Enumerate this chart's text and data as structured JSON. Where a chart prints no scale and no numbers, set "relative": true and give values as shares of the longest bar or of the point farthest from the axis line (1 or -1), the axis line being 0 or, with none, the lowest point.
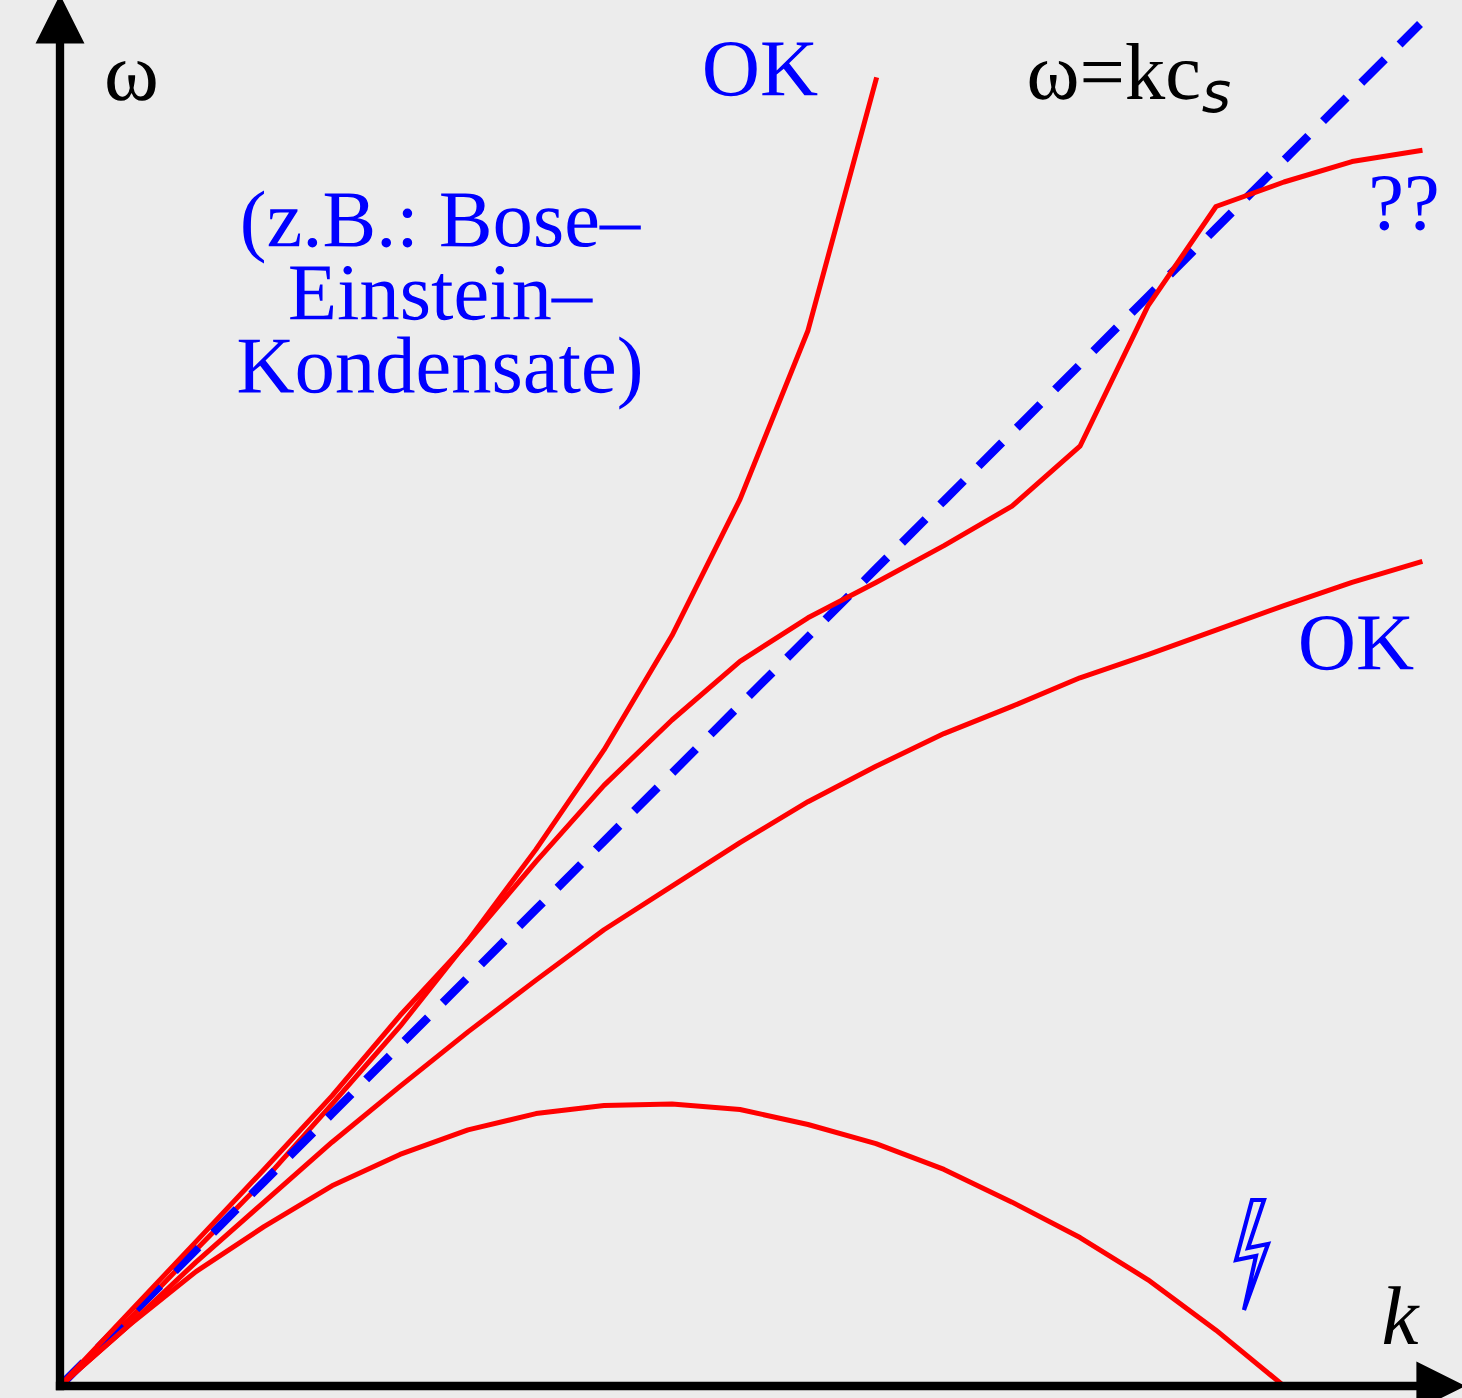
{
  "chart_data": {
    "type": "line",
    "relative": true,
    "xlabel": "k",
    "ylabel": "ω",
    "categories": [
      null,
      null,
      null,
      null,
      null,
      null,
      null,
      null,
      null,
      null,
      null,
      null,
      null,
      null,
      null,
      null,
      null,
      null,
      null,
      null,
      null
    ],
    "series": [
      {
        "color": "#ff0000",
        "line_style": "solid",
        "values": [
          0,
          0.048,
          0.1,
          0.151,
          0.207,
          0.264,
          0.327,
          0.394,
          0.467,
          0.551,
          0.651,
          0.775,
          0.959,
          null,
          null,
          null,
          null,
          null,
          null,
          null,
          null
        ]
      },
      {
        "color": "#0000ff",
        "line_style": "dashed",
        "values": [
          0,
          0.05,
          0.1,
          0.15,
          0.2,
          0.25,
          0.3,
          0.35,
          0.4,
          0.45,
          0.5,
          0.55,
          0.6,
          0.65,
          0.7,
          0.75,
          0.8,
          0.85,
          0.9,
          0.95,
          1.0
        ]
      },
      {
        "color": "#ff0000",
        "line_style": "solid",
        "values": [
          0,
          0.053,
          0.106,
          0.159,
          0.213,
          0.272,
          0.326,
          0.385,
          0.441,
          0.489,
          0.532,
          0.564,
          0.59,
          0.617,
          0.646,
          0.69,
          0.793,
          0.866,
          0.884,
          0.899,
          0.907
        ]
      },
      {
        "color": "#ff0000",
        "line_style": "solid",
        "values": [
          0,
          0.044,
          0.091,
          0.135,
          0.179,
          0.22,
          0.26,
          0.298,
          0.335,
          0.367,
          0.399,
          0.429,
          0.455,
          0.479,
          0.499,
          0.52,
          0.537,
          0.555,
          0.573,
          0.59,
          0.605
        ]
      },
      {
        "color": "#ff0000",
        "line_style": "solid",
        "values": [
          0,
          0.044,
          0.084,
          0.117,
          0.147,
          0.17,
          0.188,
          0.2,
          0.206,
          0.207,
          0.203,
          0.192,
          0.178,
          0.159,
          0.135,
          0.109,
          0.078,
          0.041,
          0.0,
          null,
          null
        ]
      }
    ],
    "annotations": [
      "OK",
      "(z.B.: Bose–\nEinstein–\nKondensate)",
      "ω=kc$_{s}$",
      "??",
      "OK"
    ],
    "legend": false,
    "marker": "none"
  }
}
